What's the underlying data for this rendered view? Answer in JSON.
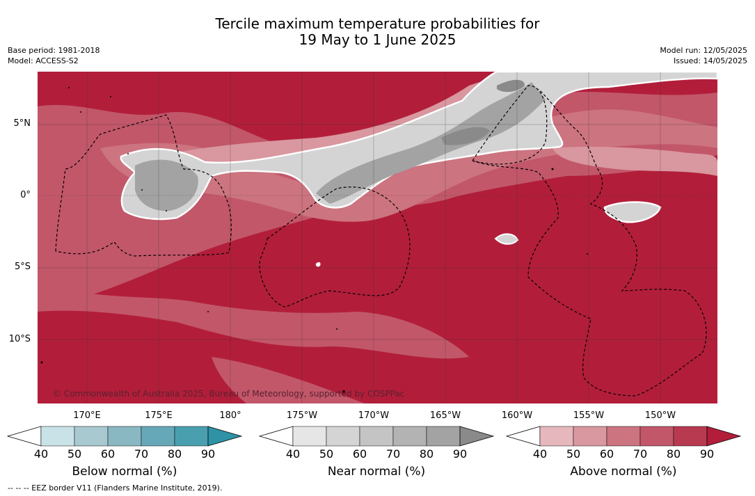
{
  "title": {
    "line1": "Tercile maximum temperature probabilities for",
    "line2": "19 May to 1 June 2025"
  },
  "meta_left": {
    "base_period": "Base period: 1981-2018",
    "model": "Model: ACCESS-S2"
  },
  "meta_right": {
    "model_run": "Model run: 12/05/2025",
    "issued": "Issued: 14/05/2025"
  },
  "lat_labels": [
    "5°N",
    "0°",
    "5°S",
    "10°S"
  ],
  "lon_labels": [
    "170°E",
    "175°E",
    "180°",
    "175°W",
    "170°W",
    "165°W",
    "160°W",
    "155°W",
    "150°W"
  ],
  "credit": "© Commonwealth of Australia 2025, Bureau of Meteorology, supported by COSPPac",
  "colorbars": [
    {
      "label": "Below normal (%)",
      "ticks": [
        "40",
        "50",
        "60",
        "70",
        "80",
        "90"
      ],
      "colors": [
        "#c9e2e8",
        "#a8c9d0",
        "#89b8c3",
        "#67a8b8",
        "#4a9fae",
        "#2f92a5"
      ]
    },
    {
      "label": "Near normal (%)",
      "ticks": [
        "40",
        "50",
        "60",
        "70",
        "80",
        "90"
      ],
      "colors": [
        "#e6e6e6",
        "#d4d4d4",
        "#c4c4c4",
        "#b3b3b3",
        "#a3a3a3",
        "#8a8a8a"
      ]
    },
    {
      "label": "Above normal (%)",
      "ticks": [
        "40",
        "50",
        "60",
        "70",
        "80",
        "90"
      ],
      "colors": [
        "#e6b8be",
        "#d9979f",
        "#cc7480",
        "#c2576a",
        "#b83a50",
        "#b21e3a"
      ]
    }
  ],
  "footnote": "-- -- -- EEZ border V11 (Flanders Marine Institute, 2019)."
}
